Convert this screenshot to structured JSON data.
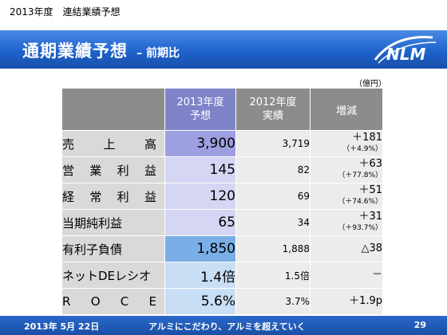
{
  "header": {
    "caption": "2013年度　連結業績予想",
    "title": "通期業績予想",
    "title_suffix": "– 前期比",
    "logo_text": "NLM",
    "unit": "（億円）"
  },
  "table": {
    "col_forecast_line1": "2013年度",
    "col_forecast_line2": "予想",
    "col_actual_line1": "2012年度",
    "col_actual_line2": "実績",
    "col_change": "増減",
    "rows": [
      {
        "label_chars": [
          "売",
          "上",
          "高"
        ],
        "forecast": "3,900",
        "actual": "3,719",
        "change": "＋181",
        "change_pct": "（＋4.9%）"
      },
      {
        "label_chars": [
          "営",
          "業",
          "利",
          "益"
        ],
        "forecast": "145",
        "actual": "82",
        "change": "＋63",
        "change_pct": "（＋77.8%）"
      },
      {
        "label_chars": [
          "経",
          "常",
          "利",
          "益"
        ],
        "forecast": "120",
        "actual": "69",
        "change": "＋51",
        "change_pct": "（＋74.6%）"
      },
      {
        "label": "当期純利益",
        "forecast": "65",
        "actual": "34",
        "change": "＋31",
        "change_pct": "（＋93.7%）"
      },
      {
        "label": "有利子負債",
        "forecast": "1,850",
        "actual": "1,888",
        "change": "△38"
      },
      {
        "label": "ネットDEレシオ",
        "forecast": "1.4倍",
        "actual": "1.5倍",
        "change": "－"
      },
      {
        "label_chars": [
          "R",
          "O",
          "C",
          "E"
        ],
        "forecast": "5.6%",
        "actual": "3.7%",
        "change": "＋1.9p"
      }
    ]
  },
  "footer": {
    "date": "2013年 5月 22日",
    "slogan": "アルミにこだわり、アルミを超えていく",
    "page": "29"
  },
  "colors": {
    "title_bar": "#1f63cc",
    "forecast_dark": "#9d9fe0",
    "forecast_light": "#d5d6f3",
    "forecast_blue": "#7aaee6",
    "header_gray": "#8c8c8c"
  }
}
